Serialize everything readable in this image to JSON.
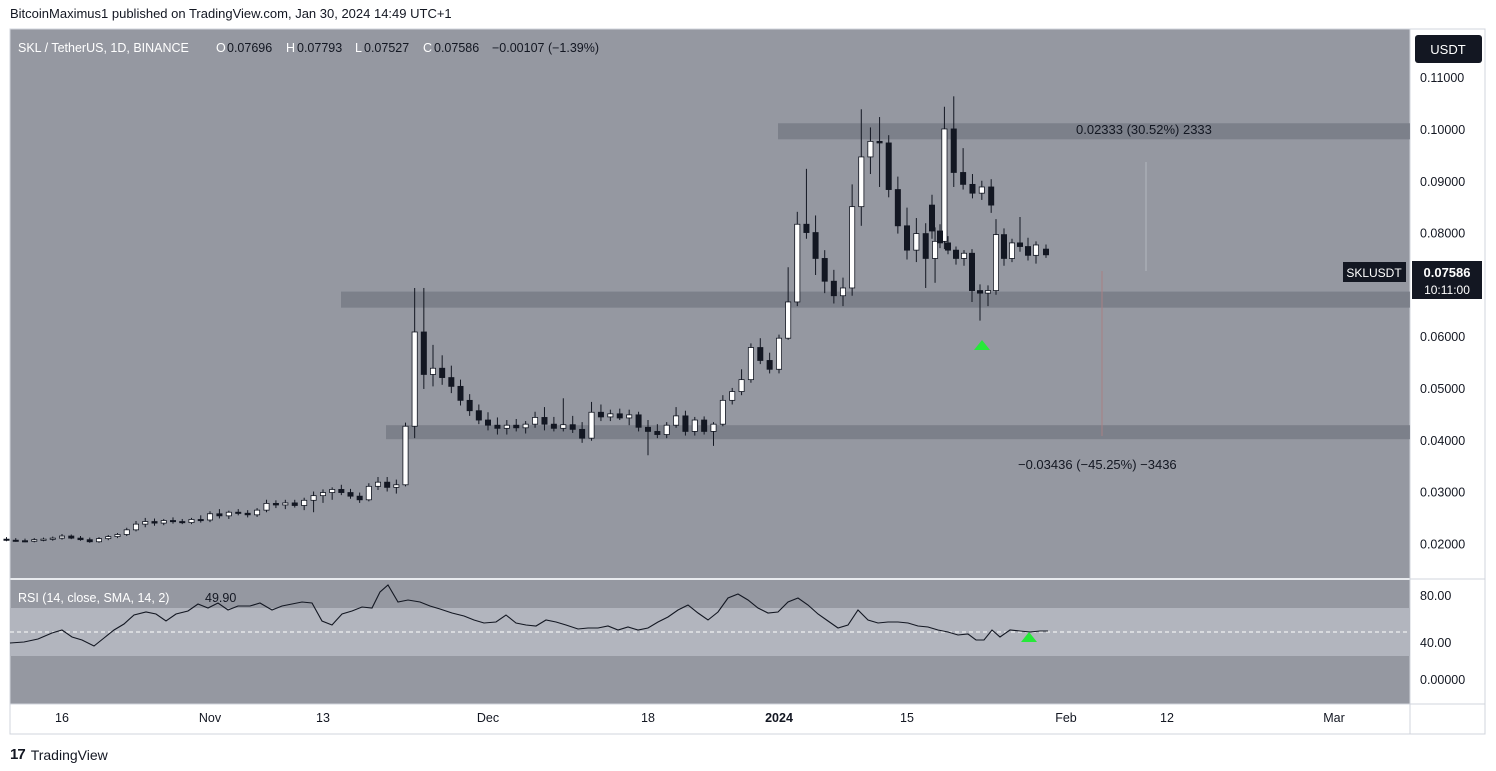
{
  "header": {
    "published_by": "BitcoinMaximus1 published on TradingView.com, Jan 30, 2024 14:49 UTC+1"
  },
  "legend": {
    "symbol": "SKL / TetherUS, 1D, BINANCE",
    "o_label": "O",
    "o_value": "0.07696",
    "h_label": "H",
    "h_value": "0.07793",
    "l_label": "L",
    "l_value": "0.07527",
    "c_label": "C",
    "c_value": "0.07586",
    "change": "−0.00107 (−1.39%)"
  },
  "currency_button": "USDT",
  "price_tag": {
    "ticker": "SKLUSDT",
    "price": "0.07586",
    "countdown": "10:11:00"
  },
  "measure_up": {
    "text": "0.02333 (30.52%) 2333"
  },
  "measure_down": {
    "text": "−0.03436 (−45.25%) −3436"
  },
  "rsi": {
    "legend": "RSI (14, close, SMA, 14, 2)",
    "value": "49.90",
    "axis_labels": [
      "80.00",
      "40.00",
      "0.00000"
    ]
  },
  "footer": {
    "brand": "TradingView",
    "logo_mark": "17"
  },
  "colors": {
    "background": "#9598a1",
    "panel_border": "#d1d4dc",
    "up_candle": "#ffffff",
    "down_candle": "#131722",
    "zone": "#787b86",
    "arrow": "#26e839",
    "rsi_line": "#131722",
    "rsi_band": "#b2b5be"
  },
  "chart_data": {
    "type": "candlestick",
    "title": "SKL / TetherUS, 1D, BINANCE",
    "y_axis_labels": [
      "0.11000",
      "0.10000",
      "0.09000",
      "0.08000",
      "0.07000",
      "0.06000",
      "0.05000",
      "0.04000",
      "0.03000",
      "0.02000"
    ],
    "ylim": [
      0.0135,
      0.1195
    ],
    "x_axis_labels": [
      "16",
      "Nov",
      "13",
      "Dec",
      "18",
      "2024",
      "15",
      "Feb",
      "12",
      "Mar"
    ],
    "x_axis_dates": [
      "2023-10-16",
      "2023-11-01",
      "2023-11-13",
      "2023-12-01",
      "2023-12-18",
      "2024-01-01",
      "2024-01-15",
      "2024-02-01",
      "2024-02-12",
      "2024-03-01"
    ],
    "first_candle_date": "2023-10-10",
    "zones": [
      {
        "from": 0.0982,
        "to": 0.1013
      },
      {
        "from": 0.0657,
        "to": 0.0688
      },
      {
        "from": 0.0403,
        "to": 0.043
      }
    ],
    "candles": [
      {
        "date": "2023-10-10",
        "o": 0.021,
        "h": 0.0214,
        "l": 0.0206,
        "c": 0.0208
      },
      {
        "date": "2023-10-11",
        "o": 0.0208,
        "h": 0.0212,
        "l": 0.0205,
        "c": 0.0207
      },
      {
        "date": "2023-10-12",
        "o": 0.0207,
        "h": 0.0211,
        "l": 0.0204,
        "c": 0.0206
      },
      {
        "date": "2023-10-13",
        "o": 0.0206,
        "h": 0.0212,
        "l": 0.0204,
        "c": 0.0209
      },
      {
        "date": "2023-10-14",
        "o": 0.0209,
        "h": 0.0213,
        "l": 0.0206,
        "c": 0.021
      },
      {
        "date": "2023-10-15",
        "o": 0.021,
        "h": 0.0215,
        "l": 0.0207,
        "c": 0.0212
      },
      {
        "date": "2023-10-16",
        "o": 0.0212,
        "h": 0.022,
        "l": 0.0209,
        "c": 0.0216
      },
      {
        "date": "2023-10-17",
        "o": 0.0216,
        "h": 0.0219,
        "l": 0.021,
        "c": 0.0212
      },
      {
        "date": "2023-10-18",
        "o": 0.0212,
        "h": 0.0216,
        "l": 0.0207,
        "c": 0.0209
      },
      {
        "date": "2023-10-19",
        "o": 0.0209,
        "h": 0.0213,
        "l": 0.0203,
        "c": 0.0205
      },
      {
        "date": "2023-10-20",
        "o": 0.0205,
        "h": 0.0214,
        "l": 0.0203,
        "c": 0.0211
      },
      {
        "date": "2023-10-21",
        "o": 0.0211,
        "h": 0.0218,
        "l": 0.0208,
        "c": 0.0215
      },
      {
        "date": "2023-10-22",
        "o": 0.0215,
        "h": 0.0222,
        "l": 0.0212,
        "c": 0.0219
      },
      {
        "date": "2023-10-23",
        "o": 0.0219,
        "h": 0.0232,
        "l": 0.0216,
        "c": 0.0228
      },
      {
        "date": "2023-10-24",
        "o": 0.0228,
        "h": 0.0245,
        "l": 0.0225,
        "c": 0.0239
      },
      {
        "date": "2023-10-25",
        "o": 0.0239,
        "h": 0.0251,
        "l": 0.0233,
        "c": 0.0244
      },
      {
        "date": "2023-10-26",
        "o": 0.0244,
        "h": 0.025,
        "l": 0.0236,
        "c": 0.0241
      },
      {
        "date": "2023-10-27",
        "o": 0.0241,
        "h": 0.0249,
        "l": 0.0237,
        "c": 0.0246
      },
      {
        "date": "2023-10-28",
        "o": 0.0246,
        "h": 0.0252,
        "l": 0.024,
        "c": 0.0244
      },
      {
        "date": "2023-10-29",
        "o": 0.0244,
        "h": 0.0249,
        "l": 0.0239,
        "c": 0.0242
      },
      {
        "date": "2023-10-30",
        "o": 0.0242,
        "h": 0.0251,
        "l": 0.0239,
        "c": 0.0248
      },
      {
        "date": "2023-10-31",
        "o": 0.0248,
        "h": 0.0256,
        "l": 0.0242,
        "c": 0.0247
      },
      {
        "date": "2023-11-01",
        "o": 0.0247,
        "h": 0.0264,
        "l": 0.0243,
        "c": 0.0259
      },
      {
        "date": "2023-11-02",
        "o": 0.0259,
        "h": 0.0268,
        "l": 0.025,
        "c": 0.0255
      },
      {
        "date": "2023-11-03",
        "o": 0.0255,
        "h": 0.0265,
        "l": 0.0249,
        "c": 0.0262
      },
      {
        "date": "2023-11-04",
        "o": 0.0262,
        "h": 0.0268,
        "l": 0.0256,
        "c": 0.026
      },
      {
        "date": "2023-11-05",
        "o": 0.026,
        "h": 0.0266,
        "l": 0.0252,
        "c": 0.0257
      },
      {
        "date": "2023-11-06",
        "o": 0.0257,
        "h": 0.027,
        "l": 0.0253,
        "c": 0.0266
      },
      {
        "date": "2023-11-07",
        "o": 0.0266,
        "h": 0.0286,
        "l": 0.0262,
        "c": 0.0279
      },
      {
        "date": "2023-11-08",
        "o": 0.0279,
        "h": 0.0285,
        "l": 0.027,
        "c": 0.0276
      },
      {
        "date": "2023-11-09",
        "o": 0.0276,
        "h": 0.0286,
        "l": 0.0268,
        "c": 0.028
      },
      {
        "date": "2023-11-10",
        "o": 0.028,
        "h": 0.0286,
        "l": 0.0271,
        "c": 0.0275
      },
      {
        "date": "2023-11-11",
        "o": 0.0275,
        "h": 0.029,
        "l": 0.0266,
        "c": 0.0285
      },
      {
        "date": "2023-11-12",
        "o": 0.0285,
        "h": 0.0302,
        "l": 0.0262,
        "c": 0.0294
      },
      {
        "date": "2023-11-13",
        "o": 0.0294,
        "h": 0.0306,
        "l": 0.028,
        "c": 0.03
      },
      {
        "date": "2023-11-14",
        "o": 0.03,
        "h": 0.031,
        "l": 0.0286,
        "c": 0.0306
      },
      {
        "date": "2023-11-15",
        "o": 0.0306,
        "h": 0.0315,
        "l": 0.0295,
        "c": 0.03
      },
      {
        "date": "2023-11-16",
        "o": 0.03,
        "h": 0.0307,
        "l": 0.0288,
        "c": 0.0293
      },
      {
        "date": "2023-11-17",
        "o": 0.0293,
        "h": 0.03,
        "l": 0.028,
        "c": 0.0286
      },
      {
        "date": "2023-11-18",
        "o": 0.0286,
        "h": 0.0318,
        "l": 0.0283,
        "c": 0.0312
      },
      {
        "date": "2023-11-19",
        "o": 0.0312,
        "h": 0.033,
        "l": 0.0305,
        "c": 0.032
      },
      {
        "date": "2023-11-20",
        "o": 0.032,
        "h": 0.033,
        "l": 0.0302,
        "c": 0.031
      },
      {
        "date": "2023-11-21",
        "o": 0.031,
        "h": 0.0325,
        "l": 0.0298,
        "c": 0.0315
      },
      {
        "date": "2023-11-22",
        "o": 0.0315,
        "h": 0.0435,
        "l": 0.0312,
        "c": 0.0428
      },
      {
        "date": "2023-11-23",
        "o": 0.0428,
        "h": 0.0695,
        "l": 0.0405,
        "c": 0.061
      },
      {
        "date": "2023-11-24",
        "o": 0.061,
        "h": 0.0695,
        "l": 0.05,
        "c": 0.0528
      },
      {
        "date": "2023-11-25",
        "o": 0.0528,
        "h": 0.0585,
        "l": 0.0505,
        "c": 0.054
      },
      {
        "date": "2023-11-26",
        "o": 0.054,
        "h": 0.0565,
        "l": 0.0508,
        "c": 0.0522
      },
      {
        "date": "2023-11-27",
        "o": 0.0522,
        "h": 0.0545,
        "l": 0.0492,
        "c": 0.0505
      },
      {
        "date": "2023-11-28",
        "o": 0.0505,
        "h": 0.0518,
        "l": 0.0468,
        "c": 0.0478
      },
      {
        "date": "2023-11-29",
        "o": 0.0478,
        "h": 0.049,
        "l": 0.0448,
        "c": 0.0458
      },
      {
        "date": "2023-11-30",
        "o": 0.0458,
        "h": 0.047,
        "l": 0.0432,
        "c": 0.044
      },
      {
        "date": "2023-12-01",
        "o": 0.044,
        "h": 0.0455,
        "l": 0.042,
        "c": 0.043
      },
      {
        "date": "2023-12-02",
        "o": 0.043,
        "h": 0.0445,
        "l": 0.0412,
        "c": 0.0424
      },
      {
        "date": "2023-12-03",
        "o": 0.0424,
        "h": 0.044,
        "l": 0.0412,
        "c": 0.043
      },
      {
        "date": "2023-12-04",
        "o": 0.043,
        "h": 0.0442,
        "l": 0.0418,
        "c": 0.0425
      },
      {
        "date": "2023-12-05",
        "o": 0.0425,
        "h": 0.0438,
        "l": 0.0414,
        "c": 0.0432
      },
      {
        "date": "2023-12-06",
        "o": 0.0432,
        "h": 0.0456,
        "l": 0.0425,
        "c": 0.0445
      },
      {
        "date": "2023-12-07",
        "o": 0.0445,
        "h": 0.0465,
        "l": 0.042,
        "c": 0.0432
      },
      {
        "date": "2023-12-08",
        "o": 0.0432,
        "h": 0.0446,
        "l": 0.0418,
        "c": 0.0424
      },
      {
        "date": "2023-12-09",
        "o": 0.0424,
        "h": 0.0482,
        "l": 0.0418,
        "c": 0.0431
      },
      {
        "date": "2023-12-10",
        "o": 0.0431,
        "h": 0.0448,
        "l": 0.0415,
        "c": 0.0422
      },
      {
        "date": "2023-12-11",
        "o": 0.0422,
        "h": 0.0436,
        "l": 0.0396,
        "c": 0.0405
      },
      {
        "date": "2023-12-12",
        "o": 0.0405,
        "h": 0.0475,
        "l": 0.04,
        "c": 0.0455
      },
      {
        "date": "2023-12-13",
        "o": 0.0455,
        "h": 0.047,
        "l": 0.0438,
        "c": 0.0446
      },
      {
        "date": "2023-12-14",
        "o": 0.0446,
        "h": 0.046,
        "l": 0.0438,
        "c": 0.0452
      },
      {
        "date": "2023-12-15",
        "o": 0.0452,
        "h": 0.0462,
        "l": 0.044,
        "c": 0.0444
      },
      {
        "date": "2023-12-16",
        "o": 0.0444,
        "h": 0.046,
        "l": 0.043,
        "c": 0.045
      },
      {
        "date": "2023-12-17",
        "o": 0.045,
        "h": 0.0456,
        "l": 0.0418,
        "c": 0.0426
      },
      {
        "date": "2023-12-18",
        "o": 0.0426,
        "h": 0.044,
        "l": 0.0372,
        "c": 0.0418
      },
      {
        "date": "2023-12-19",
        "o": 0.0418,
        "h": 0.0432,
        "l": 0.0405,
        "c": 0.0412
      },
      {
        "date": "2023-12-20",
        "o": 0.0412,
        "h": 0.0436,
        "l": 0.0405,
        "c": 0.043
      },
      {
        "date": "2023-12-21",
        "o": 0.043,
        "h": 0.0465,
        "l": 0.0425,
        "c": 0.0448
      },
      {
        "date": "2023-12-22",
        "o": 0.0448,
        "h": 0.0458,
        "l": 0.041,
        "c": 0.0418
      },
      {
        "date": "2023-12-23",
        "o": 0.0418,
        "h": 0.0446,
        "l": 0.041,
        "c": 0.044
      },
      {
        "date": "2023-12-24",
        "o": 0.044,
        "h": 0.0447,
        "l": 0.0412,
        "c": 0.0418
      },
      {
        "date": "2023-12-25",
        "o": 0.0418,
        "h": 0.0436,
        "l": 0.039,
        "c": 0.0432
      },
      {
        "date": "2023-12-26",
        "o": 0.0432,
        "h": 0.0488,
        "l": 0.0428,
        "c": 0.0478
      },
      {
        "date": "2023-12-27",
        "o": 0.0478,
        "h": 0.0502,
        "l": 0.047,
        "c": 0.0495
      },
      {
        "date": "2023-12-28",
        "o": 0.0495,
        "h": 0.0538,
        "l": 0.0488,
        "c": 0.0518
      },
      {
        "date": "2023-12-29",
        "o": 0.0518,
        "h": 0.0588,
        "l": 0.0512,
        "c": 0.058
      },
      {
        "date": "2023-12-30",
        "o": 0.058,
        "h": 0.0598,
        "l": 0.0548,
        "c": 0.0555
      },
      {
        "date": "2023-12-31",
        "o": 0.0555,
        "h": 0.057,
        "l": 0.053,
        "c": 0.0538
      },
      {
        "date": "2024-01-01",
        "o": 0.0538,
        "h": 0.0605,
        "l": 0.053,
        "c": 0.0598
      },
      {
        "date": "2024-01-02",
        "o": 0.0598,
        "h": 0.0735,
        "l": 0.0595,
        "c": 0.0668
      },
      {
        "date": "2024-01-03",
        "o": 0.0668,
        "h": 0.0842,
        "l": 0.066,
        "c": 0.0818
      },
      {
        "date": "2024-01-04",
        "o": 0.0818,
        "h": 0.0925,
        "l": 0.079,
        "c": 0.0802
      },
      {
        "date": "2024-01-05",
        "o": 0.0802,
        "h": 0.0835,
        "l": 0.072,
        "c": 0.0752
      },
      {
        "date": "2024-01-06",
        "o": 0.0752,
        "h": 0.0768,
        "l": 0.0685,
        "c": 0.0708
      },
      {
        "date": "2024-01-07",
        "o": 0.0708,
        "h": 0.073,
        "l": 0.0665,
        "c": 0.068
      },
      {
        "date": "2024-01-08",
        "o": 0.068,
        "h": 0.0715,
        "l": 0.066,
        "c": 0.0695
      },
      {
        "date": "2024-01-09",
        "o": 0.0695,
        "h": 0.0895,
        "l": 0.068,
        "c": 0.0852
      },
      {
        "date": "2024-01-10",
        "o": 0.0852,
        "h": 0.104,
        "l": 0.0815,
        "c": 0.0948
      },
      {
        "date": "2024-01-11",
        "o": 0.0948,
        "h": 0.1005,
        "l": 0.0915,
        "c": 0.0978
      },
      {
        "date": "2024-01-12",
        "o": 0.0978,
        "h": 0.1025,
        "l": 0.089,
        "c": 0.0975
      },
      {
        "date": "2024-01-13",
        "o": 0.0975,
        "h": 0.099,
        "l": 0.087,
        "c": 0.0885
      },
      {
        "date": "2024-01-14",
        "o": 0.0885,
        "h": 0.091,
        "l": 0.08,
        "c": 0.0815
      },
      {
        "date": "2024-01-15",
        "o": 0.0815,
        "h": 0.085,
        "l": 0.075,
        "c": 0.0768
      },
      {
        "date": "2024-01-16",
        "o": 0.0768,
        "h": 0.083,
        "l": 0.0745,
        "c": 0.08
      },
      {
        "date": "2024-01-17",
        "o": 0.08,
        "h": 0.082,
        "l": 0.0695,
        "c": 0.0752
      },
      {
        "date": "2024-01-18",
        "o": 0.0752,
        "h": 0.0812,
        "l": 0.0705,
        "c": 0.0785
      },
      {
        "date": "2024-01-19",
        "o": 0.0785,
        "h": 0.1045,
        "l": 0.077,
        "c": 0.1002
      },
      {
        "date": "2024-01-20",
        "o": 0.1002,
        "h": 0.1065,
        "l": 0.089,
        "c": 0.0918
      },
      {
        "date": "2024-01-21",
        "o": 0.0918,
        "h": 0.0965,
        "l": 0.0885,
        "c": 0.0895
      },
      {
        "date": "2024-01-22",
        "o": 0.0895,
        "h": 0.0915,
        "l": 0.0868,
        "c": 0.0878
      },
      {
        "date": "2024-01-23",
        "o": 0.0878,
        "h": 0.0902,
        "l": 0.0865,
        "c": 0.089
      },
      {
        "date": "2024-01-24",
        "o": 0.089,
        "h": 0.0905,
        "l": 0.084,
        "c": 0.0855
      }
    ]
  }
}
